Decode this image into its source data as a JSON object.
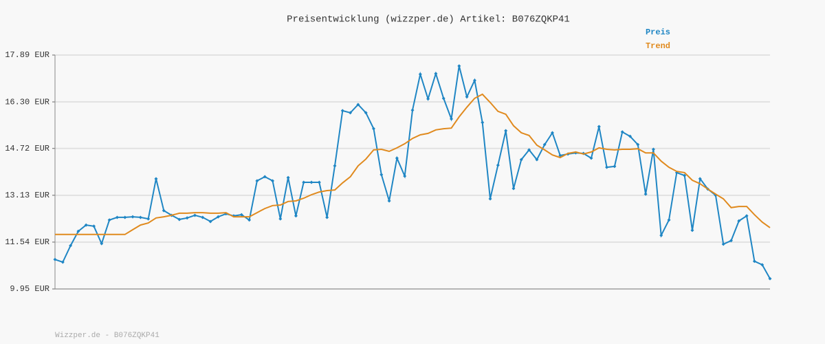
{
  "chart_data": {
    "type": "line",
    "title": "Preisentwicklung (wizzper.de) Artikel: B076ZQKP41",
    "footer": "Wizzper.de - B076ZQKP41",
    "ylim": [
      9.95,
      17.89
    ],
    "yticks": [
      {
        "value": 9.95,
        "label": "9.95 EUR"
      },
      {
        "value": 11.54,
        "label": "11.54 EUR"
      },
      {
        "value": 13.13,
        "label": "13.13 EUR"
      },
      {
        "value": 14.72,
        "label": "14.72 EUR"
      },
      {
        "value": 16.3,
        "label": "16.30 EUR"
      },
      {
        "value": 17.89,
        "label": "17.89 EUR"
      }
    ],
    "grid": true,
    "legend": "top-right",
    "series": [
      {
        "name": "Preis",
        "color": "#1f86c4",
        "markers": true,
        "values": [
          10.95,
          10.86,
          11.42,
          11.91,
          12.12,
          12.08,
          11.49,
          12.29,
          12.38,
          12.38,
          12.4,
          12.38,
          12.33,
          13.69,
          12.61,
          12.45,
          12.31,
          12.36,
          12.45,
          12.38,
          12.24,
          12.4,
          12.5,
          12.43,
          12.47,
          12.29,
          13.62,
          13.76,
          13.62,
          12.33,
          13.73,
          12.43,
          13.57,
          13.57,
          13.57,
          12.38,
          14.13,
          16.0,
          15.93,
          16.21,
          15.93,
          15.39,
          13.83,
          12.94,
          14.39,
          13.78,
          16.02,
          17.24,
          16.4,
          17.26,
          16.42,
          15.72,
          17.52,
          16.47,
          17.03,
          15.6,
          13.01,
          14.15,
          15.32,
          13.36,
          14.34,
          14.67,
          14.34,
          14.85,
          15.25,
          14.48,
          14.53,
          14.57,
          14.55,
          14.39,
          15.46,
          14.08,
          14.11,
          15.28,
          15.13,
          14.85,
          13.17,
          14.69,
          11.77,
          12.29,
          13.9,
          13.8,
          11.94,
          13.69,
          13.34,
          13.13,
          11.47,
          11.59,
          12.26,
          12.43,
          10.89,
          10.77,
          10.3
        ]
      },
      {
        "name": "Trend",
        "color": "#e08a1e",
        "markers": false,
        "values": [
          11.8,
          11.8,
          11.8,
          11.8,
          11.8,
          11.8,
          11.8,
          11.8,
          11.8,
          11.8,
          11.96,
          12.12,
          12.19,
          12.36,
          12.4,
          12.45,
          12.52,
          12.52,
          12.54,
          12.54,
          12.52,
          12.52,
          12.54,
          12.4,
          12.4,
          12.4,
          12.54,
          12.68,
          12.78,
          12.8,
          12.92,
          12.94,
          13.03,
          13.15,
          13.24,
          13.29,
          13.31,
          13.55,
          13.76,
          14.13,
          14.36,
          14.67,
          14.69,
          14.62,
          14.74,
          14.88,
          15.06,
          15.18,
          15.23,
          15.35,
          15.39,
          15.41,
          15.79,
          16.12,
          16.42,
          16.56,
          16.28,
          15.98,
          15.88,
          15.49,
          15.25,
          15.16,
          14.83,
          14.67,
          14.5,
          14.41,
          14.55,
          14.6,
          14.53,
          14.6,
          14.74,
          14.69,
          14.67,
          14.69,
          14.69,
          14.71,
          14.57,
          14.57,
          14.29,
          14.08,
          13.94,
          13.9,
          13.64,
          13.52,
          13.34,
          13.17,
          13.01,
          12.71,
          12.75,
          12.75,
          12.47,
          12.22,
          12.03
        ]
      }
    ]
  }
}
